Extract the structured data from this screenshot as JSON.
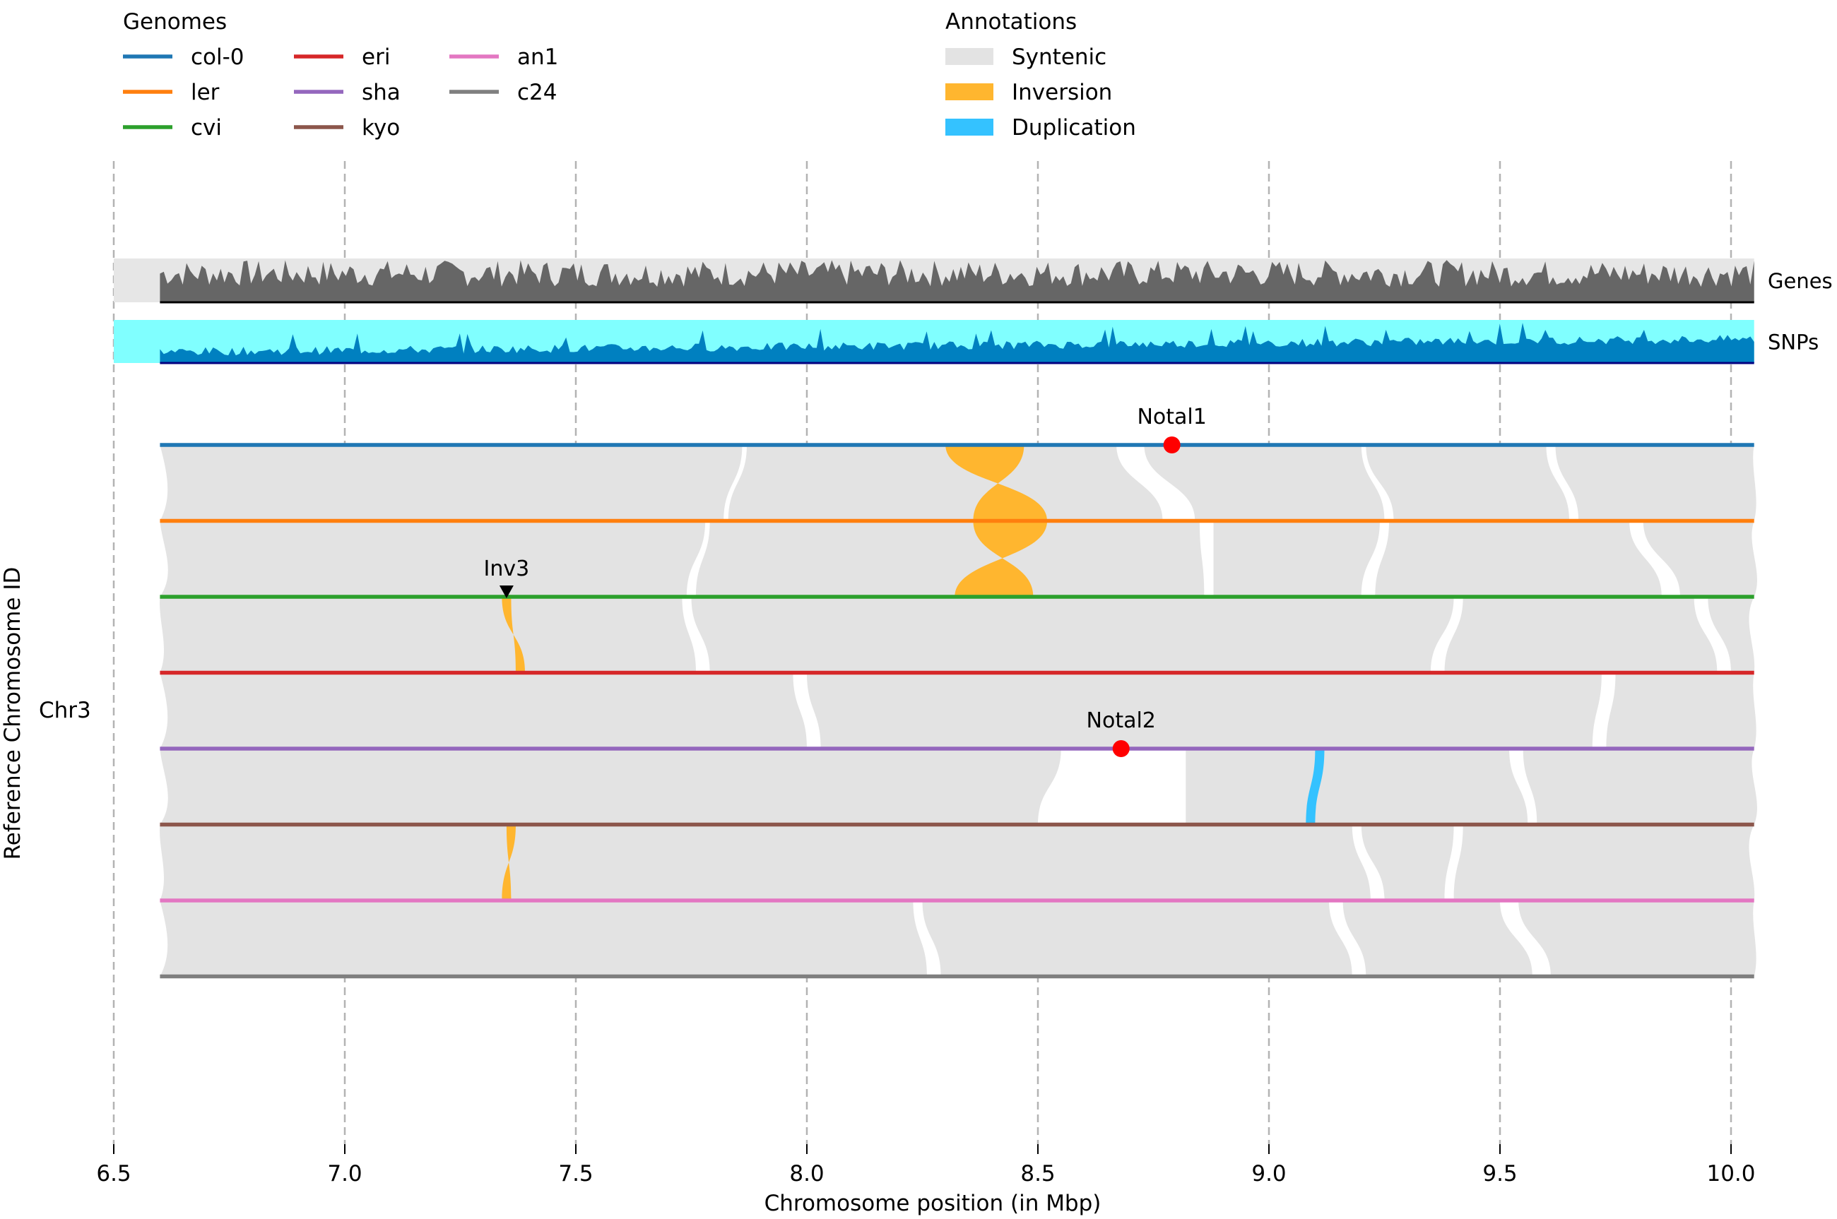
{
  "chart_data": {
    "type": "area",
    "title": "",
    "xlabel": "Chromosome position (in Mbp)",
    "ylabel": "Reference Chromosome ID",
    "chromosome": "Chr3",
    "xlim": [
      6.5,
      10.05
    ],
    "xticks": [
      "6.5",
      "7.0",
      "7.5",
      "8.0",
      "8.5",
      "9.0",
      "9.5",
      "10.0"
    ],
    "grid": "vertical dashed",
    "legend_genomes": {
      "title": "Genomes",
      "position": "top-left",
      "items": [
        {
          "name": "col-0",
          "color": "#1f77b4"
        },
        {
          "name": "ler",
          "color": "#ff7f0e"
        },
        {
          "name": "cvi",
          "color": "#2ca02c"
        },
        {
          "name": "eri",
          "color": "#d62728"
        },
        {
          "name": "sha",
          "color": "#9467bd"
        },
        {
          "name": "kyo",
          "color": "#8c564b"
        },
        {
          "name": "an1",
          "color": "#e377c2"
        },
        {
          "name": "c24",
          "color": "#7f7f7f"
        }
      ]
    },
    "legend_annotations": {
      "title": "Annotations",
      "position": "top-center",
      "items": [
        {
          "name": "Syntenic",
          "color": "#e3e3e3"
        },
        {
          "name": "Inversion",
          "color": "#ffb62f"
        },
        {
          "name": "Duplication",
          "color": "#34c2ff"
        }
      ]
    },
    "tracks": [
      {
        "name": "Genes",
        "fill": "#666666",
        "background": "#e6e6e6",
        "range": [
          6.6,
          10.05
        ]
      },
      {
        "name": "SNPs",
        "fill": "#0080c0",
        "background": "#80ffff",
        "range": [
          6.6,
          10.05
        ]
      }
    ],
    "genome_range": [
      6.6,
      10.05
    ],
    "gaps": [
      {
        "from": 0,
        "top": [
          8.67,
          8.73
        ],
        "bottom": [
          8.77,
          8.84
        ]
      },
      {
        "from": 0,
        "top": [
          7.86,
          7.87
        ],
        "bottom": [
          7.82,
          7.83
        ]
      },
      {
        "from": 0,
        "top": [
          9.2,
          9.21
        ],
        "bottom": [
          9.25,
          9.27
        ]
      },
      {
        "from": 0,
        "top": [
          9.6,
          9.62
        ],
        "bottom": [
          9.65,
          9.67
        ]
      },
      {
        "from": 1,
        "top": [
          7.78,
          7.79
        ],
        "bottom": [
          7.74,
          7.76
        ]
      },
      {
        "from": 1,
        "top": [
          8.85,
          8.88
        ],
        "bottom": [
          8.86,
          8.88
        ]
      },
      {
        "from": 1,
        "top": [
          9.24,
          9.26
        ],
        "bottom": [
          9.2,
          9.23
        ]
      },
      {
        "from": 1,
        "top": [
          9.78,
          9.81
        ],
        "bottom": [
          9.85,
          9.89
        ]
      },
      {
        "from": 2,
        "top": [
          7.73,
          7.75
        ],
        "bottom": [
          7.76,
          7.79
        ]
      },
      {
        "from": 2,
        "top": [
          9.4,
          9.42
        ],
        "bottom": [
          9.35,
          9.38
        ]
      },
      {
        "from": 2,
        "top": [
          9.92,
          9.95
        ],
        "bottom": [
          9.97,
          10.0
        ]
      },
      {
        "from": 3,
        "top": [
          7.97,
          8.0
        ],
        "bottom": [
          8.0,
          8.03
        ]
      },
      {
        "from": 3,
        "top": [
          9.72,
          9.75
        ],
        "bottom": [
          9.7,
          9.73
        ]
      },
      {
        "from": 4,
        "top": [
          8.55,
          8.82
        ],
        "bottom": [
          8.5,
          8.82
        ]
      },
      {
        "from": 4,
        "top": [
          9.52,
          9.55
        ],
        "bottom": [
          9.56,
          9.58
        ]
      },
      {
        "from": 5,
        "top": [
          9.18,
          9.2
        ],
        "bottom": [
          9.22,
          9.25
        ]
      },
      {
        "from": 5,
        "top": [
          9.4,
          9.42
        ],
        "bottom": [
          9.38,
          9.4
        ]
      },
      {
        "from": 6,
        "top": [
          8.23,
          8.25
        ],
        "bottom": [
          8.26,
          8.29
        ]
      },
      {
        "from": 6,
        "top": [
          9.5,
          9.54
        ],
        "bottom": [
          9.57,
          9.61
        ]
      },
      {
        "from": 6,
        "top": [
          9.13,
          9.16
        ],
        "bottom": [
          9.18,
          9.21
        ]
      }
    ],
    "inversions": [
      {
        "from": 0,
        "top": [
          8.3,
          8.47
        ],
        "bottom": [
          8.36,
          8.52
        ]
      },
      {
        "from": 1,
        "top": [
          8.36,
          8.52
        ],
        "bottom": [
          8.32,
          8.49
        ]
      },
      {
        "from": 2,
        "top": [
          7.34,
          7.36
        ],
        "bottom": [
          7.37,
          7.39
        ]
      },
      {
        "from": 5,
        "top": [
          7.35,
          7.37
        ],
        "bottom": [
          7.34,
          7.36
        ]
      }
    ],
    "duplications": [
      {
        "from": 4,
        "top": [
          9.1,
          9.12
        ],
        "bottom": [
          9.08,
          9.1
        ]
      }
    ],
    "markers": [
      {
        "label": "Notal1",
        "genome": "col-0",
        "x": 8.79,
        "shape": "circle",
        "color": "#ff0000"
      },
      {
        "label": "Notal2",
        "genome": "sha",
        "x": 8.68,
        "shape": "circle",
        "color": "#ff0000"
      },
      {
        "label": "Inv3",
        "genome": "cvi",
        "x": 7.35,
        "shape": "triangle-down",
        "color": "#000000"
      }
    ]
  }
}
